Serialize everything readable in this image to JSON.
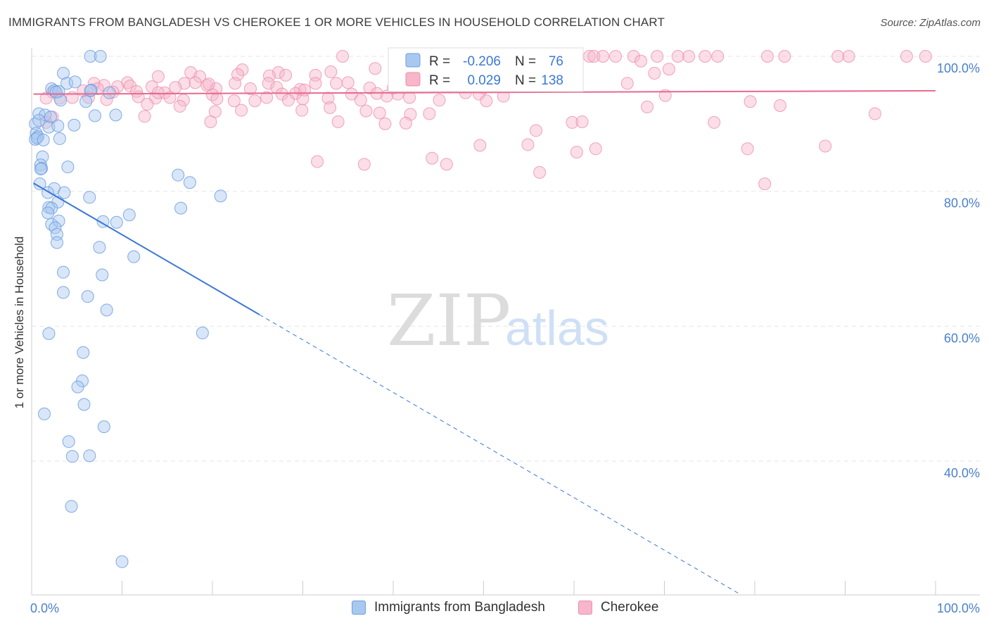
{
  "title": "IMMIGRANTS FROM BANGLADESH VS CHEROKEE 1 OR MORE VEHICLES IN HOUSEHOLD CORRELATION CHART",
  "source": "Source: ZipAtlas.com",
  "watermark": {
    "zip": "ZIP",
    "atlas": "atlas"
  },
  "colors": {
    "blue_fill": "#a9c8f0",
    "blue_stroke": "#6c9ee0",
    "blue_line": "#3b78d4",
    "pink_fill": "#f7b6c9",
    "pink_stroke": "#ec8fae",
    "pink_line": "#e8688f",
    "axis_label": "#4a7fcf",
    "grid": "#e6e6e6"
  },
  "stats_box": {
    "rows": [
      {
        "r_label": "R =",
        "r_value": "-0.206",
        "n_label": "N =",
        "n_value": "76"
      },
      {
        "r_label": "R =",
        "r_value": "0.029",
        "n_label": "N =",
        "n_value": "138"
      }
    ]
  },
  "legend": {
    "series1": "Immigrants from Bangladesh",
    "series2": "Cherokee"
  },
  "chart_data": {
    "type": "scatter",
    "title": "IMMIGRANTS FROM BANGLADESH VS CHEROKEE 1 OR MORE VEHICLES IN HOUSEHOLD CORRELATION CHART",
    "xlabel": "",
    "ylabel": "1 or more Vehicles in Household",
    "xlim": [
      0,
      100
    ],
    "ylim": [
      20.0,
      101.5
    ],
    "x_tick_labels": [
      "0.0%",
      "100.0%"
    ],
    "y_ticks": [
      40,
      60,
      80,
      100
    ],
    "y_tick_labels": [
      "40.0%",
      "60.0%",
      "80.0%",
      "100.0%"
    ],
    "series": [
      {
        "name": "Immigrants from Bangladesh",
        "R": -0.206,
        "N": 76,
        "trend": {
          "x_start": 0.2,
          "y_start": 81.2,
          "x_solid_end": 25.2,
          "x_end": 78.5
        },
        "points": [
          [
            6.5,
            100
          ],
          [
            7.6,
            100
          ],
          [
            3.5,
            97.5
          ],
          [
            3.9,
            96
          ],
          [
            6.6,
            95
          ],
          [
            2.2,
            95.2
          ],
          [
            2.5,
            94.9
          ],
          [
            3.0,
            94.8
          ],
          [
            3.2,
            93.5
          ],
          [
            6.0,
            93.3
          ],
          [
            0.8,
            91.5
          ],
          [
            1.5,
            91.3
          ],
          [
            2.1,
            91
          ],
          [
            7.0,
            91.2
          ],
          [
            9.3,
            91.3
          ],
          [
            0.4,
            90
          ],
          [
            1.9,
            89.5
          ],
          [
            2.9,
            89.7
          ],
          [
            4.7,
            89.8
          ],
          [
            0.5,
            88.6
          ],
          [
            0.7,
            88.1
          ],
          [
            0.4,
            87.7
          ],
          [
            3.1,
            87.8
          ],
          [
            1.2,
            85.1
          ],
          [
            1.0,
            83.9
          ],
          [
            1.1,
            83.4
          ],
          [
            4.0,
            83.6
          ],
          [
            1.0,
            83.3
          ],
          [
            16.2,
            82.4
          ],
          [
            17.5,
            81.3
          ],
          [
            0.9,
            81.1
          ],
          [
            2.5,
            80.4
          ],
          [
            1.8,
            79.8
          ],
          [
            3.6,
            79.8
          ],
          [
            6.4,
            79.1
          ],
          [
            20.9,
            79.3
          ],
          [
            2.9,
            78.4
          ],
          [
            1.9,
            77.6
          ],
          [
            2.2,
            77.5
          ],
          [
            16.5,
            77.5
          ],
          [
            1.8,
            76.8
          ],
          [
            10.8,
            76.5
          ],
          [
            7.9,
            75.5
          ],
          [
            9.4,
            75.4
          ],
          [
            2.2,
            75.1
          ],
          [
            3.0,
            75.6
          ],
          [
            2.6,
            74.6
          ],
          [
            2.8,
            73.6
          ],
          [
            2.8,
            72.4
          ],
          [
            7.5,
            71.7
          ],
          [
            11.3,
            70.3
          ],
          [
            3.5,
            68
          ],
          [
            7.8,
            67.6
          ],
          [
            3.5,
            65
          ],
          [
            6.2,
            64.4
          ],
          [
            8.3,
            62.4
          ],
          [
            1.9,
            58.9
          ],
          [
            18.9,
            59
          ],
          [
            5.7,
            56.1
          ],
          [
            5.6,
            51.9
          ],
          [
            5.1,
            51
          ],
          [
            5.8,
            48.4
          ],
          [
            8.0,
            45.1
          ],
          [
            1.4,
            47
          ],
          [
            4.1,
            42.9
          ],
          [
            4.5,
            40.7
          ],
          [
            6.4,
            40.8
          ],
          [
            4.4,
            33.3
          ],
          [
            10.0,
            25.1
          ],
          [
            0.6,
            87.9
          ],
          [
            1.3,
            87.6
          ],
          [
            0.8,
            90.5
          ],
          [
            2.7,
            94.7
          ],
          [
            6.5,
            94.9
          ],
          [
            8.6,
            94.6
          ],
          [
            4.8,
            96.2
          ]
        ]
      },
      {
        "name": "Cherokee",
        "R": 0.029,
        "N": 138,
        "trend": {
          "x_start": 0.2,
          "y_start": 94.4,
          "x_end": 100,
          "y_end": 94.9
        },
        "points": [
          [
            34.4,
            100
          ],
          [
            42.7,
            100
          ],
          [
            47.8,
            100
          ],
          [
            50.2,
            100
          ],
          [
            50.5,
            100
          ],
          [
            61.7,
            100
          ],
          [
            62.2,
            100
          ],
          [
            63.2,
            100
          ],
          [
            64.6,
            100
          ],
          [
            66.6,
            100
          ],
          [
            69.2,
            100
          ],
          [
            71.5,
            100
          ],
          [
            72.7,
            100
          ],
          [
            74.5,
            100
          ],
          [
            75.9,
            100
          ],
          [
            81.4,
            100
          ],
          [
            83.3,
            100
          ],
          [
            89.2,
            100
          ],
          [
            90.4,
            100
          ],
          [
            96.8,
            100
          ],
          [
            98.9,
            100
          ],
          [
            48.6,
            99.6
          ],
          [
            67.4,
            99.3
          ],
          [
            38.0,
            98.2
          ],
          [
            23.3,
            98
          ],
          [
            70.5,
            98.1
          ],
          [
            17.6,
            97.6
          ],
          [
            27.3,
            97.6
          ],
          [
            33.1,
            97.7
          ],
          [
            68.9,
            97.5
          ],
          [
            14.0,
            97
          ],
          [
            18.6,
            97
          ],
          [
            22.8,
            97.3
          ],
          [
            26.3,
            97.1
          ],
          [
            28.1,
            97.2
          ],
          [
            31.4,
            97.2
          ],
          [
            42.0,
            97.3
          ],
          [
            46.9,
            97.1
          ],
          [
            6.9,
            96
          ],
          [
            10.6,
            96.1
          ],
          [
            16.9,
            96
          ],
          [
            18.1,
            96.1
          ],
          [
            22.5,
            96
          ],
          [
            26.2,
            96
          ],
          [
            31.4,
            96
          ],
          [
            33.7,
            96
          ],
          [
            35.0,
            96.1
          ],
          [
            65.9,
            96
          ],
          [
            8.0,
            95.7
          ],
          [
            9.5,
            95.5
          ],
          [
            10.9,
            95.6
          ],
          [
            13.3,
            95.5
          ],
          [
            15.9,
            95.4
          ],
          [
            19.4,
            95.7
          ],
          [
            20.4,
            95.2
          ],
          [
            24.2,
            95.2
          ],
          [
            27.1,
            95.4
          ],
          [
            29.7,
            95.1
          ],
          [
            37.4,
            95.3
          ],
          [
            40.0,
            95.3
          ],
          [
            50.0,
            95.3
          ],
          [
            2.3,
            94.7
          ],
          [
            5.7,
            94.9
          ],
          [
            7.3,
            95.2
          ],
          [
            9.0,
            94.7
          ],
          [
            11.6,
            94.8
          ],
          [
            14.7,
            94.6
          ],
          [
            20.0,
            94.3
          ],
          [
            27.7,
            94.4
          ],
          [
            29.2,
            94.5
          ],
          [
            35.4,
            94.4
          ],
          [
            38.2,
            94.5
          ],
          [
            40.5,
            94.4
          ],
          [
            48.0,
            94.6
          ],
          [
            49.5,
            94.4
          ],
          [
            52.2,
            94.1
          ],
          [
            70.1,
            94.2
          ],
          [
            1.6,
            93.8
          ],
          [
            3.1,
            93.8
          ],
          [
            4.5,
            93.9
          ],
          [
            6.3,
            93.9
          ],
          [
            8.3,
            93.6
          ],
          [
            11.8,
            94
          ],
          [
            13.7,
            93.8
          ],
          [
            15.3,
            93.9
          ],
          [
            16.8,
            93.5
          ],
          [
            20.5,
            93.7
          ],
          [
            22.4,
            93.4
          ],
          [
            24.7,
            93.4
          ],
          [
            26.0,
            93.9
          ],
          [
            28.4,
            93.5
          ],
          [
            30.0,
            93.7
          ],
          [
            32.8,
            93.8
          ],
          [
            36.4,
            93.5
          ],
          [
            41.8,
            93.9
          ],
          [
            45.1,
            93.5
          ],
          [
            50.3,
            93.4
          ],
          [
            79.5,
            93.3
          ],
          [
            12.8,
            92.9
          ],
          [
            16.4,
            92.6
          ],
          [
            33.0,
            92.4
          ],
          [
            68.1,
            92.5
          ],
          [
            82.8,
            92.7
          ],
          [
            20.3,
            91.8
          ],
          [
            23.2,
            92
          ],
          [
            29.9,
            92
          ],
          [
            37.0,
            91.9
          ],
          [
            38.5,
            91.6
          ],
          [
            41.9,
            91.4
          ],
          [
            44.0,
            91.5
          ],
          [
            93.3,
            91.5
          ],
          [
            2.3,
            91
          ],
          [
            12.5,
            91.1
          ],
          [
            1.6,
            90.2
          ],
          [
            19.8,
            90.3
          ],
          [
            33.9,
            90.3
          ],
          [
            39.1,
            90
          ],
          [
            41.4,
            90.1
          ],
          [
            59.8,
            90.2
          ],
          [
            60.9,
            90.3
          ],
          [
            75.5,
            90.2
          ],
          [
            55.8,
            89
          ],
          [
            49.6,
            86.8
          ],
          [
            54.9,
            86.9
          ],
          [
            60.3,
            85.8
          ],
          [
            62.4,
            86.3
          ],
          [
            79.2,
            86.3
          ],
          [
            87.8,
            86.7
          ],
          [
            31.6,
            84.4
          ],
          [
            36.8,
            84
          ],
          [
            44.3,
            84.9
          ],
          [
            45.9,
            84
          ],
          [
            56.2,
            82.8
          ],
          [
            81.1,
            81.1
          ],
          [
            14.0,
            94.6
          ],
          [
            19.6,
            95.9
          ],
          [
            30.2,
            95
          ],
          [
            39.3,
            94.1
          ]
        ]
      }
    ]
  }
}
